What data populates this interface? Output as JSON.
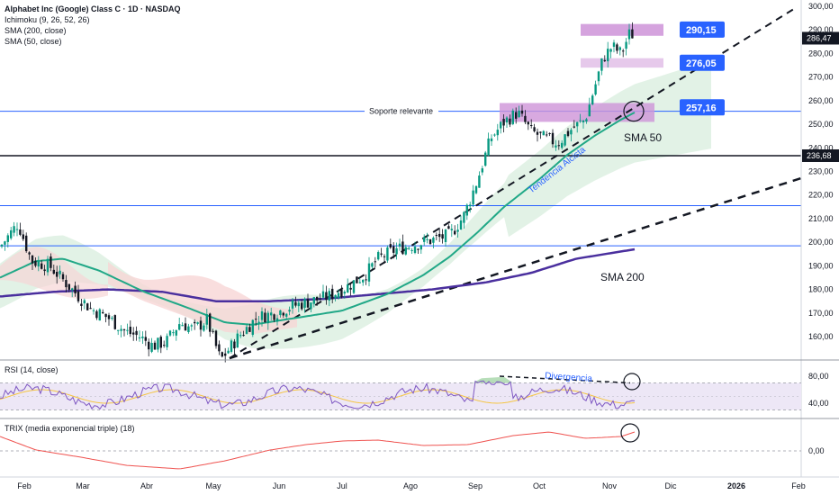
{
  "legend": {
    "title": "Alphabet Inc (Google) Class C · 1D · NASDAQ",
    "ichimoku": "Ichimoku (9, 26, 52, 26)",
    "sma200": "SMA (200, close)",
    "sma50": "SMA (50, close)",
    "rsi": "RSI (14, close)",
    "trix": "TRIX (media exponencial triple) (18)"
  },
  "annotations": {
    "support_label": "Soporte relevante",
    "trend_label": "Tendencia Alcista",
    "sma50_label": "SMA 50",
    "sma200_label": "SMA 200",
    "divergence_label": "Divergencia"
  },
  "colors": {
    "up": "#089981",
    "down": "#131722",
    "sma50": "#21a887",
    "sma200": "#4a2f9e",
    "blue": "#2962ff",
    "purple_box": "#ce93d8",
    "cloud_green": "#d8eedd",
    "cloud_red": "#f7d6d6",
    "rsi_band": "#ede7f6",
    "trix": "#ef5350"
  },
  "chart_data": {
    "type": "candlestick",
    "y_ticks": [
      "300,00",
      "290,00",
      "280,00",
      "270,00",
      "260,00",
      "250,00",
      "240,00",
      "230,00",
      "220,00",
      "210,00",
      "200,00",
      "190,00",
      "180,00",
      "170,00",
      "160,00"
    ],
    "y_tick_values": [
      300,
      290,
      280,
      270,
      260,
      250,
      240,
      230,
      220,
      210,
      200,
      190,
      180,
      170,
      160
    ],
    "ylim": [
      150,
      301
    ],
    "x_ticks": [
      "Feb",
      "Mar",
      "Abr",
      "May",
      "Jun",
      "Jul",
      "Ago",
      "Sep",
      "Oct",
      "Nov",
      "Dic",
      "2026",
      "Feb"
    ],
    "price_levels": [
      {
        "label": "290,15",
        "value": 290.15,
        "style": "blue-tag"
      },
      {
        "label": "286,47",
        "value": 286.47,
        "style": "dark-tag"
      },
      {
        "label": "276,05",
        "value": 276.05,
        "style": "blue-tag"
      },
      {
        "label": "257,16",
        "value": 257.16,
        "style": "blue-tag"
      },
      {
        "label": "236,68",
        "value": 236.68,
        "style": "dark-tag"
      }
    ],
    "horizontal_lines": [
      {
        "value": 255.5,
        "color": "blue"
      },
      {
        "value": 236.68,
        "color": "black"
      },
      {
        "value": 215.5,
        "color": "blue"
      },
      {
        "value": 198.5,
        "color": "blue"
      }
    ],
    "closes_keypoints": [
      [
        0,
        198
      ],
      [
        20,
        208
      ],
      [
        35,
        192
      ],
      [
        55,
        190
      ],
      [
        80,
        180
      ],
      [
        100,
        172
      ],
      [
        120,
        168
      ],
      [
        140,
        162
      ],
      [
        155,
        160
      ],
      [
        170,
        156
      ],
      [
        185,
        158
      ],
      [
        200,
        166
      ],
      [
        215,
        163
      ],
      [
        230,
        167
      ],
      [
        245,
        150
      ],
      [
        265,
        160
      ],
      [
        285,
        168
      ],
      [
        305,
        170
      ],
      [
        325,
        173
      ],
      [
        345,
        175
      ],
      [
        365,
        177
      ],
      [
        385,
        181
      ],
      [
        405,
        186
      ],
      [
        420,
        193
      ],
      [
        440,
        197
      ],
      [
        460,
        199
      ],
      [
        480,
        201
      ],
      [
        500,
        203
      ],
      [
        515,
        211
      ],
      [
        530,
        226
      ],
      [
        545,
        244
      ],
      [
        560,
        251
      ],
      [
        575,
        255
      ],
      [
        590,
        247
      ],
      [
        605,
        244
      ],
      [
        620,
        242
      ],
      [
        635,
        248
      ],
      [
        650,
        252
      ],
      [
        660,
        265
      ],
      [
        670,
        278
      ],
      [
        680,
        283
      ],
      [
        690,
        280
      ],
      [
        700,
        289
      ],
      [
        705,
        287
      ]
    ],
    "sma50_keypoints": [
      [
        0,
        185
      ],
      [
        40,
        192
      ],
      [
        70,
        193
      ],
      [
        110,
        188
      ],
      [
        160,
        179
      ],
      [
        210,
        172
      ],
      [
        250,
        166
      ],
      [
        280,
        165
      ],
      [
        330,
        168
      ],
      [
        380,
        171
      ],
      [
        430,
        178
      ],
      [
        470,
        186
      ],
      [
        500,
        194
      ],
      [
        530,
        204
      ],
      [
        560,
        215
      ],
      [
        600,
        227
      ],
      [
        630,
        237
      ],
      [
        660,
        245
      ],
      [
        690,
        252
      ],
      [
        705,
        255
      ]
    ],
    "sma200_keypoints": [
      [
        0,
        177
      ],
      [
        60,
        179
      ],
      [
        120,
        180
      ],
      [
        180,
        179
      ],
      [
        240,
        175
      ],
      [
        300,
        175
      ],
      [
        360,
        176
      ],
      [
        420,
        178
      ],
      [
        480,
        180
      ],
      [
        540,
        183
      ],
      [
        590,
        187
      ],
      [
        640,
        193
      ],
      [
        705,
        197
      ]
    ],
    "rsi": {
      "ticks": [
        "80,00",
        "40,00"
      ],
      "tick_values": [
        80,
        40
      ],
      "ylim": [
        20,
        100
      ],
      "band": [
        30,
        70
      ]
    },
    "trix": {
      "ticks": [
        "0,00"
      ],
      "tick_values": [
        0
      ]
    }
  }
}
